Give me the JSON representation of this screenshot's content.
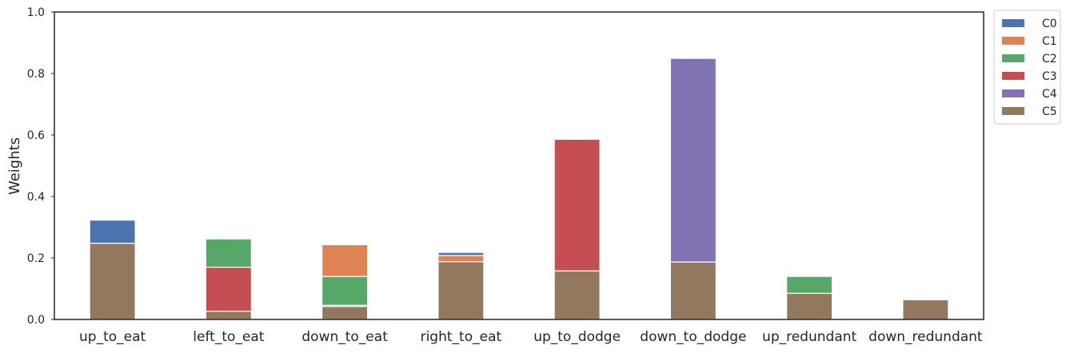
{
  "chart_data": {
    "type": "bar",
    "stacked": true,
    "title": "",
    "xlabel": "",
    "ylabel": "Weights",
    "ylim": [
      0,
      1.0
    ],
    "yticks": [
      "0.0",
      "0.2",
      "0.4",
      "0.6",
      "0.8",
      "1.0"
    ],
    "categories": [
      "up_to_eat",
      "left_to_eat",
      "down_to_eat",
      "right_to_eat",
      "up_to_dodge",
      "down_to_dodge",
      "up_redundant",
      "down_redundant"
    ],
    "legend_position": "outside-top-right",
    "grid": false,
    "series": [
      {
        "name": "C5",
        "color": "#937860",
        "values": [
          0.248,
          0.027,
          0.042,
          0.188,
          0.158,
          0.187,
          0.085,
          0.064
        ]
      },
      {
        "name": "C0",
        "color": "#4c72b0",
        "values": [
          0.075,
          0.0,
          0.004,
          0.0,
          0.0,
          0.0,
          0.0,
          0.0
        ]
      },
      {
        "name": "C3",
        "color": "#c44e52",
        "values": [
          0.0,
          0.143,
          0.0,
          0.0,
          0.428,
          0.0,
          0.0,
          0.0
        ]
      },
      {
        "name": "C2",
        "color": "#55a868",
        "values": [
          0.0,
          0.092,
          0.094,
          0.0,
          0.0,
          0.0,
          0.055,
          0.0
        ]
      },
      {
        "name": "C1",
        "color": "#dd8452",
        "values": [
          0.0,
          0.0,
          0.103,
          0.02,
          0.0,
          0.0,
          0.0,
          0.0
        ]
      },
      {
        "name": "C0 ",
        "color": "#4c72b0",
        "values": [
          0.0,
          0.0,
          0.0,
          0.01,
          0.0,
          0.0,
          0.0,
          0.0
        ]
      },
      {
        "name": "C4",
        "color": "#8172b3",
        "values": [
          0.0,
          0.0,
          0.0,
          0.0,
          0.0,
          0.662,
          0.0,
          0.0
        ]
      }
    ],
    "legend": [
      {
        "name": "C0",
        "color": "#4c72b0"
      },
      {
        "name": "C1",
        "color": "#dd8452"
      },
      {
        "name": "C2",
        "color": "#55a868"
      },
      {
        "name": "C3",
        "color": "#c44e52"
      },
      {
        "name": "C4",
        "color": "#8172b3"
      },
      {
        "name": "C5",
        "color": "#937860"
      }
    ]
  }
}
